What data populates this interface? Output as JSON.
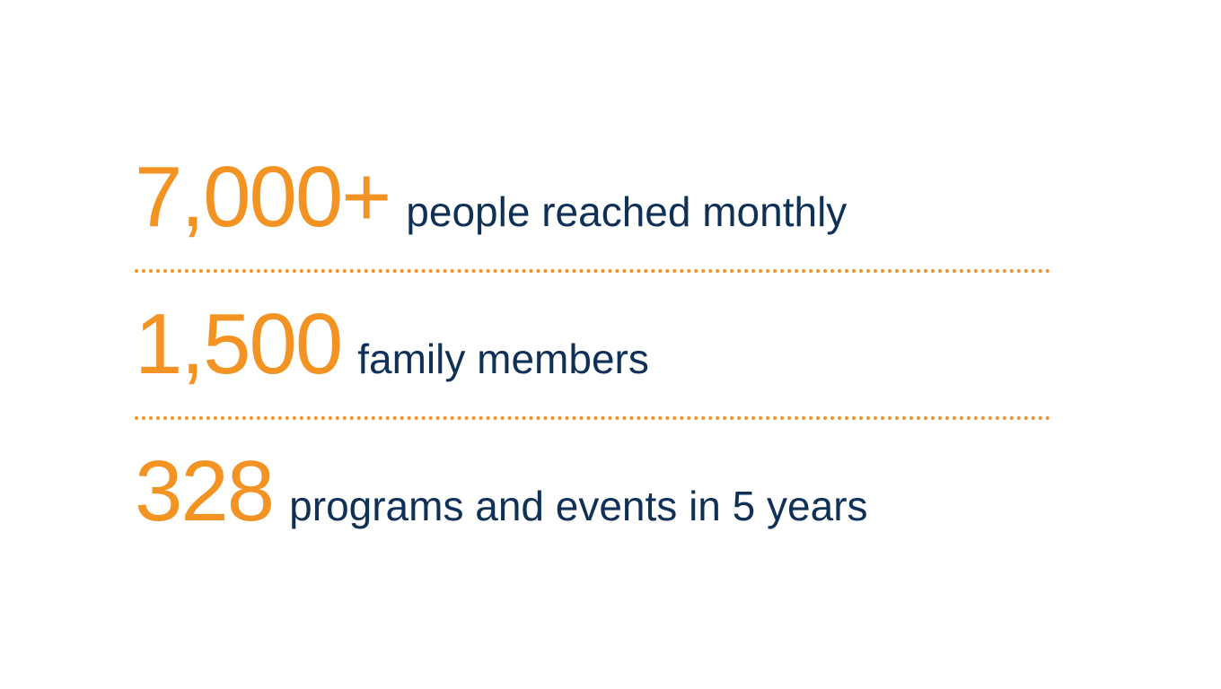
{
  "infographic": {
    "type": "infographic",
    "background_color": "#ffffff",
    "number_color": "#f39323",
    "label_color": "#0f3057",
    "divider_color": "#f39323",
    "number_fontsize": 96,
    "label_fontsize": 46,
    "number_fontweight": "400",
    "label_fontweight": "400",
    "divider_style": "dotted",
    "divider_width": 4,
    "stats": [
      {
        "number": "7,000+",
        "label": "people reached monthly"
      },
      {
        "number": "1,500",
        "label": "family members"
      },
      {
        "number": "328",
        "label": "programs and events in 5 years"
      }
    ]
  }
}
